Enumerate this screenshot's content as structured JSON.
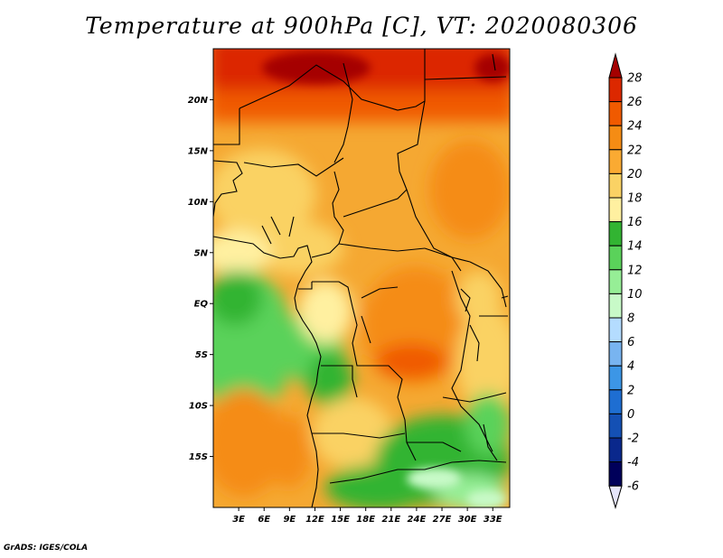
{
  "title": "Temperature at 900hPa [C], VT: 2020080306",
  "credit": "GrADS: IGES/COLA",
  "lat_labels": [
    "20N",
    "15N",
    "10N",
    "5N",
    "EQ",
    "5S",
    "10S",
    "15S"
  ],
  "lat_values": [
    20,
    15,
    10,
    5,
    0,
    -5,
    -10,
    -15
  ],
  "lon_labels": [
    "3E",
    "6E",
    "9E",
    "12E",
    "15E",
    "18E",
    "21E",
    "24E",
    "27E",
    "30E",
    "33E"
  ],
  "lon_values": [
    3,
    6,
    9,
    12,
    15,
    18,
    21,
    24,
    27,
    30,
    33
  ],
  "map_extent": {
    "lon_min": 0,
    "lon_max": 35,
    "lat_min": -20,
    "lat_max": 25
  },
  "colorbar": {
    "levels": [
      "28",
      "26",
      "24",
      "22",
      "20",
      "18",
      "16",
      "14",
      "12",
      "10",
      "8",
      "6",
      "4",
      "2",
      "0",
      "-2",
      "-4",
      "-6"
    ],
    "colors": [
      "#a50000",
      "#dc2800",
      "#f05a00",
      "#f58c14",
      "#faaa32",
      "#fad264",
      "#fff0a0",
      "#32b432",
      "#5ad25a",
      "#96ee96",
      "#c8fac8",
      "#b4dcff",
      "#78b4f0",
      "#3c96e6",
      "#1e6ed2",
      "#1450b4",
      "#0a288c",
      "#00005a",
      "#e6e6fa"
    ]
  }
}
